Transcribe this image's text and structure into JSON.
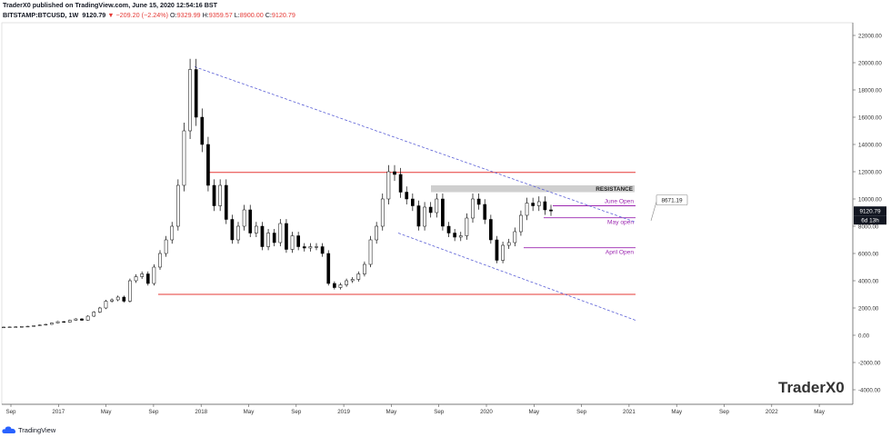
{
  "header": {
    "published": "TraderX0 published on TradingView.com, June 15, 2020 12:54:16 BST",
    "symbol": "BITSTAMP:BTCUSD, 1W",
    "last": "9120.79",
    "change": "−209.20 (−2.24%)",
    "open_label": "O:",
    "open": "9329.99",
    "high_label": "H:",
    "high": "9359.57",
    "low_label": "L:",
    "low": "8900.00",
    "close_label": "C:",
    "close": "9120.79"
  },
  "footer": {
    "brand": "TradingView"
  },
  "watermark": "TraderX0",
  "colors": {
    "resistance_line": "#e53935",
    "level_lines": "#9c27b0",
    "channel": "#5a5fd6",
    "resistance_zone": "#cfcfcf",
    "candle": "#000000",
    "price_badge": "#131722"
  },
  "chart_data": {
    "type": "candlestick",
    "symbol": "BITSTAMP:BTCUSD",
    "interval": "1W",
    "ylim": [
      -5000,
      23000
    ],
    "y_ticks": [
      "22000.00",
      "20000.00",
      "18000.00",
      "16000.00",
      "14000.00",
      "12000.00",
      "10000.00",
      "8000.00",
      "6000.00",
      "4000.00",
      "2000.00",
      "0.00",
      "-2000.00",
      "-4000.00"
    ],
    "x_ticks": [
      "Sep",
      "2017",
      "May",
      "Sep",
      "2018",
      "May",
      "Sep",
      "2019",
      "May",
      "Sep",
      "2020",
      "May",
      "Sep",
      "2021",
      "May",
      "Sep",
      "2022",
      "May"
    ],
    "price_badge": "9120.79",
    "countdown_badge": "6d 13h",
    "price_marker": "8671.19",
    "series": [
      {
        "name": "BTCUSD weekly close",
        "values": [
          600,
          610,
          620,
          640,
          660,
          700,
          750,
          800,
          900,
          1000,
          960,
          1100,
          1200,
          1100,
          1400,
          1700,
          2000,
          2500,
          2600,
          2800,
          2500,
          4000,
          4300,
          4500,
          3800,
          5000,
          6000,
          7000,
          8000,
          11000,
          15000,
          19500,
          16000,
          14000,
          11000,
          9500,
          11000,
          8500,
          7000,
          8000,
          9200,
          7500,
          8000,
          6500,
          7500,
          6800,
          8200,
          6300,
          7300,
          6500,
          6400,
          6500,
          6500,
          6000,
          3800,
          3500,
          3700,
          4000,
          4100,
          4500,
          5200,
          7000,
          8000,
          10000,
          12000,
          11800,
          10500,
          10000,
          9500,
          8000,
          9400,
          9000,
          10000,
          8000,
          7500,
          7200,
          7300,
          8600,
          10000,
          9600,
          8500,
          7000,
          5500,
          6600,
          6800,
          7600,
          8800,
          9700,
          9500,
          9800,
          9200,
          9120
        ]
      }
    ],
    "annotations": {
      "resistance_label": "RESISTANCE",
      "levels": [
        {
          "label": "June Open",
          "price": 9500
        },
        {
          "label": "May open",
          "price": 8620
        },
        {
          "label": "April Open",
          "price": 6420
        }
      ],
      "red_lines": [
        11950,
        3000
      ],
      "resistance_zone": [
        10500,
        11000
      ],
      "channel_upper": [
        19700,
        8300
      ],
      "channel_lower": [
        7500,
        1100
      ]
    },
    "grid": true,
    "legend": "none"
  }
}
